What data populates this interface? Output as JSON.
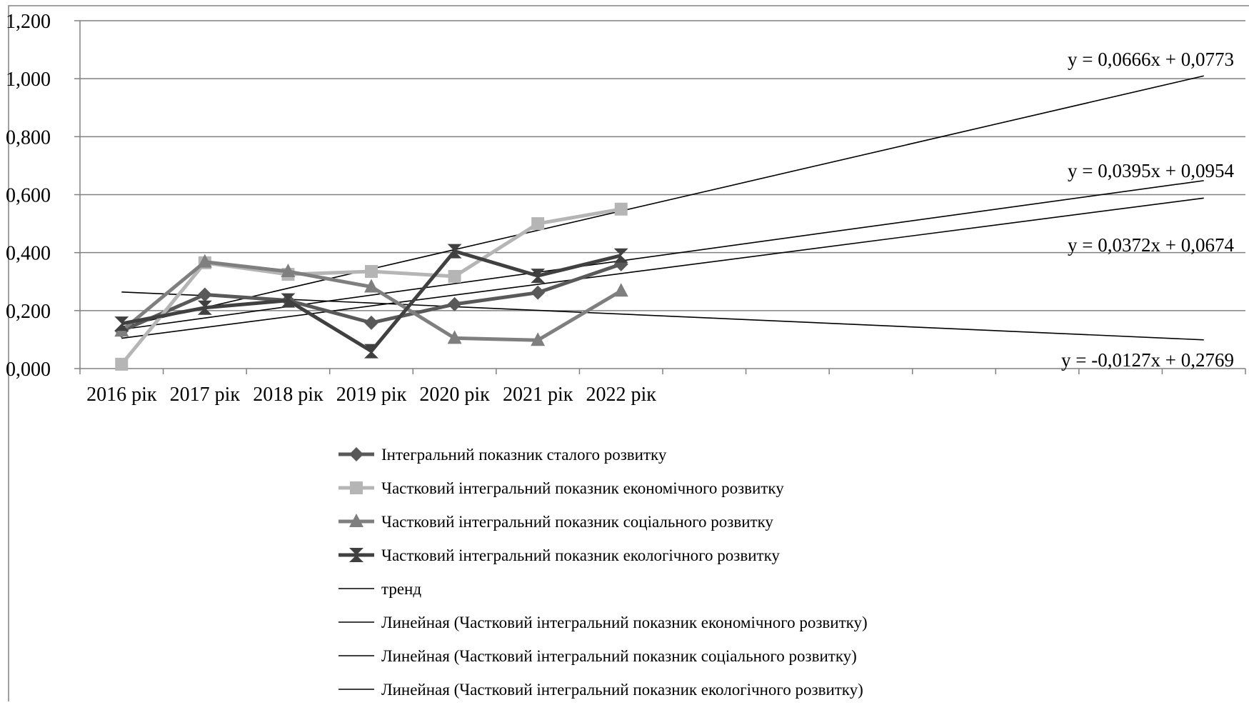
{
  "chart_data": {
    "type": "line",
    "categories": [
      "2016 рік",
      "2017 рік",
      "2018 рік",
      "2019 рік",
      "2020 рік",
      "2021 рік",
      "2022 рік"
    ],
    "ylim": [
      0,
      1.2
    ],
    "yticks": [
      "0,000",
      "0,200",
      "0,400",
      "0,600",
      "0,800",
      "1,000",
      "1,200"
    ],
    "grid": true,
    "legend_position": "bottom",
    "n_slots": 14,
    "series": [
      {
        "name": "Інтегральний показник сталого розвитку",
        "values": [
          0.13,
          0.255,
          0.235,
          0.158,
          0.222,
          0.262,
          0.36
        ],
        "marker": "diamond",
        "color": "#595959"
      },
      {
        "name": "Частковий інтегральний показник економічного розвитку",
        "values": [
          0.015,
          0.365,
          0.325,
          0.335,
          0.318,
          0.5,
          0.55
        ],
        "marker": "square",
        "color": "#b5b5b5"
      },
      {
        "name": "Частковий інтегральний показник соціального розвитку",
        "values": [
          0.13,
          0.368,
          0.335,
          0.282,
          0.105,
          0.098,
          0.268
        ],
        "marker": "triangle",
        "color": "#7f7f7f"
      },
      {
        "name": "Частковий інтегральний показник екологічного розвитку",
        "values": [
          0.155,
          0.21,
          0.235,
          0.06,
          0.405,
          0.32,
          0.39
        ],
        "marker": "hourglass",
        "color": "#404040"
      }
    ],
    "trendlines": [
      {
        "name": "тренд",
        "slope": -0.0127,
        "intercept": 0.2769,
        "label": "y = -0,0127x + 0,2769"
      },
      {
        "name": "Линейная (Частковий інтегральний показник економічного розвитку)",
        "slope": 0.0666,
        "intercept": 0.0773,
        "label": "y = 0,0666x + 0,0773"
      },
      {
        "name": "Линейная (Частковий інтегральний показник соціального розвитку)",
        "slope": 0.0372,
        "intercept": 0.0674,
        "label": "y = 0,0372x + 0,0674"
      },
      {
        "name": "Линейная (Частковий інтегральний показник екологічного розвитку)",
        "slope": 0.0395,
        "intercept": 0.0954,
        "label": "y = 0,0395x + 0,0954"
      }
    ]
  }
}
